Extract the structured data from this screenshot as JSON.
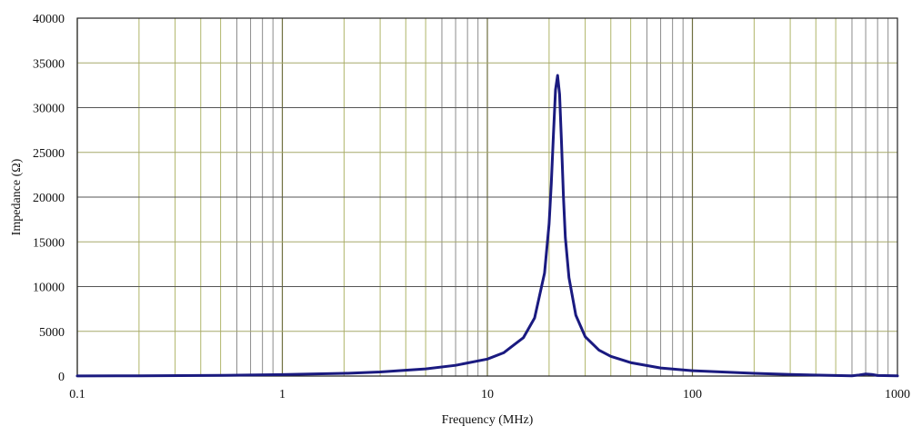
{
  "chart_data": {
    "type": "line",
    "title": "",
    "xlabel": "Frequency (MHz)",
    "ylabel": "Impedance (Ω)",
    "xscale": "log",
    "yscale": "linear",
    "xlim": [
      0.1,
      1000
    ],
    "ylim": [
      0,
      40000
    ],
    "x_ticks": [
      0.1,
      1,
      10,
      100,
      1000
    ],
    "x_tick_labels": [
      "0.1",
      "1",
      "10",
      "100",
      "1000"
    ],
    "y_ticks": [
      0,
      5000,
      10000,
      15000,
      20000,
      25000,
      30000,
      35000,
      40000
    ],
    "y_tick_labels": [
      "0",
      "5000",
      "10000",
      "15000",
      "20000",
      "25000",
      "30000",
      "35000",
      "40000"
    ],
    "grid": true,
    "legend": "none",
    "colors": {
      "line": "#1a1a80",
      "grid_vertical_major": "#6f6f3f",
      "grid_vertical_minor_a": "#b0b56a",
      "grid_vertical_minor_b": "#8c8c8c",
      "grid_horizontal_a": "#555555",
      "grid_horizontal_b": "#a6a86a",
      "frame": "#222222"
    },
    "series": [
      {
        "x": [
          0.1,
          0.2,
          0.5,
          1,
          2,
          3,
          5,
          7,
          10,
          12,
          15,
          17,
          19,
          20,
          20.5,
          21,
          21.5,
          22,
          22.5,
          23,
          23.5,
          24,
          25,
          27,
          30,
          35,
          40,
          50,
          70,
          100,
          200,
          300,
          500,
          600,
          650,
          700,
          750,
          800,
          1000
        ],
        "y": [
          10,
          30,
          80,
          160,
          300,
          460,
          800,
          1200,
          1900,
          2600,
          4300,
          6500,
          11500,
          17000,
          21500,
          27000,
          32000,
          33600,
          31500,
          26000,
          20000,
          15500,
          11000,
          6800,
          4400,
          2900,
          2200,
          1500,
          900,
          600,
          300,
          180,
          60,
          20,
          120,
          230,
          180,
          60,
          20
        ]
      }
    ]
  }
}
